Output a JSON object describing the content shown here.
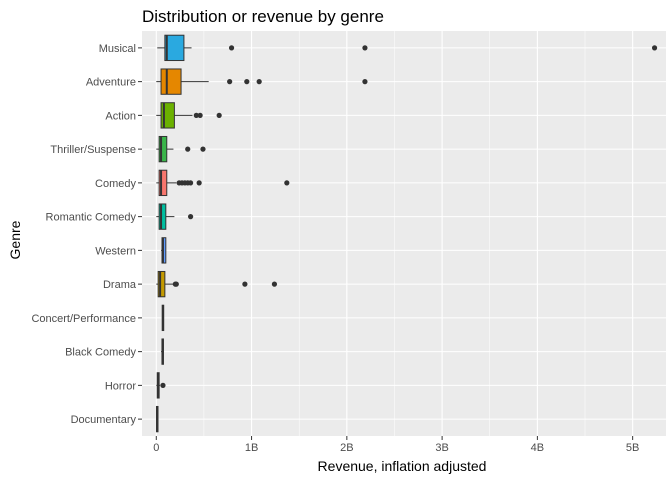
{
  "chart_data": {
    "type": "boxplot",
    "title": "Distribution or revenue by genre",
    "xlabel": "Revenue, inflation adjusted",
    "ylabel": "Genre",
    "orientation": "horizontal",
    "xlim": [
      -0.15,
      5.35
    ],
    "x_ticks": [
      {
        "value": 0,
        "label": "0"
      },
      {
        "value": 1,
        "label": "1B"
      },
      {
        "value": 2,
        "label": "2B"
      },
      {
        "value": 3,
        "label": "3B"
      },
      {
        "value": 4,
        "label": "4B"
      },
      {
        "value": 5,
        "label": "5B"
      }
    ],
    "x_unit": "billions of dollars",
    "grid": true,
    "legend": "none",
    "categories": [
      "Musical",
      "Adventure",
      "Action",
      "Thriller/Suspense",
      "Comedy",
      "Romantic Comedy",
      "Western",
      "Drama",
      "Concert/Performance",
      "Black Comedy",
      "Horror",
      "Documentary"
    ],
    "series": [
      {
        "category": "Musical",
        "color": "#2AA9E0",
        "min": 0.01,
        "q1": 0.09,
        "median": 0.11,
        "q3": 0.29,
        "max": 0.37,
        "outliers": [
          0.79,
          2.19,
          5.23
        ]
      },
      {
        "category": "Adventure",
        "color": "#E58700",
        "min": 0.0,
        "q1": 0.05,
        "median": 0.11,
        "q3": 0.26,
        "max": 0.55,
        "outliers": [
          0.77,
          0.95,
          1.08,
          2.19
        ]
      },
      {
        "category": "Action",
        "color": "#6BB100",
        "min": 0.0,
        "q1": 0.05,
        "median": 0.08,
        "q3": 0.19,
        "max": 0.38,
        "outliers": [
          0.42,
          0.46,
          0.66
        ]
      },
      {
        "category": "Thriller/Suspense",
        "color": "#3AB54A",
        "min": 0.0,
        "q1": 0.03,
        "median": 0.05,
        "q3": 0.11,
        "max": 0.18,
        "outliers": [
          0.33,
          0.49
        ]
      },
      {
        "category": "Comedy",
        "color": "#F8766D",
        "min": 0.0,
        "q1": 0.03,
        "median": 0.05,
        "q3": 0.11,
        "max": 0.21,
        "outliers": [
          0.24,
          0.27,
          0.3,
          0.33,
          0.36,
          0.45,
          1.37
        ]
      },
      {
        "category": "Romantic Comedy",
        "color": "#00BFA0",
        "min": 0.0,
        "q1": 0.03,
        "median": 0.05,
        "q3": 0.1,
        "max": 0.19,
        "outliers": [
          0.36
        ]
      },
      {
        "category": "Western",
        "color": "#619CFF",
        "min": 0.05,
        "q1": 0.06,
        "median": 0.07,
        "q3": 0.1,
        "max": 0.1,
        "outliers": []
      },
      {
        "category": "Drama",
        "color": "#C49A00",
        "min": 0.0,
        "q1": 0.02,
        "median": 0.04,
        "q3": 0.09,
        "max": 0.18,
        "outliers": [
          0.2,
          0.21,
          0.93,
          1.24
        ]
      },
      {
        "category": "Concert/Performance",
        "color": "#A3A500",
        "min": 0.06,
        "q1": 0.065,
        "median": 0.07,
        "q3": 0.075,
        "max": 0.08,
        "outliers": []
      },
      {
        "category": "Black Comedy",
        "color": "#00B0F6",
        "min": 0.05,
        "q1": 0.06,
        "median": 0.065,
        "q3": 0.075,
        "max": 0.08,
        "outliers": []
      },
      {
        "category": "Horror",
        "color": "#E76BF3",
        "min": 0.0,
        "q1": 0.01,
        "median": 0.02,
        "q3": 0.03,
        "max": 0.04,
        "outliers": [
          0.07
        ]
      },
      {
        "category": "Documentary",
        "color": "#FF62BC",
        "min": 0.0,
        "q1": 0.005,
        "median": 0.01,
        "q3": 0.015,
        "max": 0.02,
        "outliers": []
      }
    ],
    "colors": {
      "panel_background": "#EBEBEB",
      "grid_major": "#FFFFFF",
      "box_outline": "#333333",
      "outlier": "#333333"
    }
  }
}
